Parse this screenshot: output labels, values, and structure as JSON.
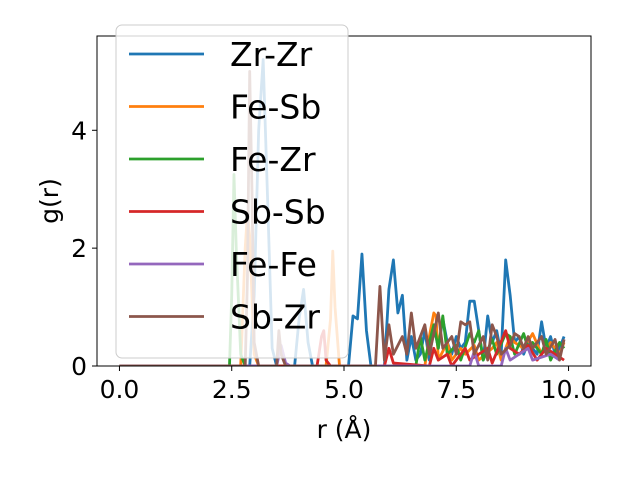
{
  "chart_data": {
    "type": "line",
    "title": "",
    "xlabel": "r (Å)",
    "ylabel": "g(r)",
    "xlim": [
      -0.5,
      10.5
    ],
    "ylim": [
      0,
      5.6
    ],
    "xticks": [
      0.0,
      2.5,
      5.0,
      7.5,
      10.0
    ],
    "xtick_labels": [
      "0.0",
      "2.5",
      "5.0",
      "7.5",
      "10.0"
    ],
    "yticks": [
      0,
      2,
      4
    ],
    "ytick_labels": [
      "0",
      "2",
      "4"
    ],
    "grid": false,
    "legend_placement": "upper-left",
    "series": [
      {
        "name": "Zr-Zr",
        "color": "#1f77b4",
        "points": [
          [
            0.0,
            0
          ],
          [
            2.9,
            0
          ],
          [
            3.0,
            1.2
          ],
          [
            3.1,
            4.0
          ],
          [
            3.2,
            5.2
          ],
          [
            3.3,
            2.8
          ],
          [
            3.4,
            0.3
          ],
          [
            3.5,
            0
          ],
          [
            3.9,
            0
          ],
          [
            4.0,
            0.8
          ],
          [
            4.1,
            1.3
          ],
          [
            4.2,
            0.4
          ],
          [
            4.3,
            0
          ],
          [
            5.1,
            0
          ],
          [
            5.2,
            0.85
          ],
          [
            5.3,
            0.8
          ],
          [
            5.4,
            1.9
          ],
          [
            5.5,
            0.6
          ],
          [
            5.6,
            0
          ],
          [
            5.9,
            0
          ],
          [
            6.0,
            1.3
          ],
          [
            6.1,
            1.8
          ],
          [
            6.2,
            0.9
          ],
          [
            6.3,
            1.2
          ],
          [
            6.4,
            0.1
          ],
          [
            6.5,
            0.5
          ],
          [
            6.6,
            0.1
          ],
          [
            6.7,
            0.2
          ],
          [
            6.8,
            0.6
          ],
          [
            6.9,
            0.1
          ],
          [
            7.0,
            0.7
          ],
          [
            7.1,
            0.3
          ],
          [
            7.2,
            0.8
          ],
          [
            7.3,
            0.4
          ],
          [
            7.4,
            0.2
          ],
          [
            7.5,
            0.5
          ],
          [
            7.6,
            0.3
          ],
          [
            7.7,
            0.4
          ],
          [
            7.8,
            1.1
          ],
          [
            7.9,
            1.1
          ],
          [
            8.0,
            0.6
          ],
          [
            8.1,
            0.1
          ],
          [
            8.2,
            0.85
          ],
          [
            8.3,
            0.4
          ],
          [
            8.4,
            0.6
          ],
          [
            8.5,
            0.2
          ],
          [
            8.6,
            1.8
          ],
          [
            8.7,
            1.2
          ],
          [
            8.8,
            0.4
          ],
          [
            8.9,
            0.5
          ],
          [
            9.0,
            0.2
          ],
          [
            9.1,
            0.4
          ],
          [
            9.2,
            0.3
          ],
          [
            9.3,
            0.2
          ],
          [
            9.4,
            0.75
          ],
          [
            9.5,
            0.3
          ],
          [
            9.6,
            0.5
          ],
          [
            9.7,
            0.2
          ],
          [
            9.8,
            0.3
          ],
          [
            9.9,
            0.5
          ]
        ]
      },
      {
        "name": "Fe-Sb",
        "color": "#ff7f0e",
        "points": [
          [
            0.0,
            0
          ],
          [
            2.7,
            0
          ],
          [
            2.8,
            2.0
          ],
          [
            2.85,
            2.6
          ],
          [
            2.9,
            2.2
          ],
          [
            3.0,
            0.2
          ],
          [
            3.1,
            0
          ],
          [
            4.6,
            0
          ],
          [
            4.7,
            0.8
          ],
          [
            4.75,
            1.95
          ],
          [
            4.8,
            1.0
          ],
          [
            4.9,
            0
          ],
          [
            6.8,
            0
          ],
          [
            6.9,
            0.5
          ],
          [
            7.0,
            0.9
          ],
          [
            7.05,
            0.85
          ],
          [
            7.1,
            0.1
          ],
          [
            7.3,
            0.4
          ],
          [
            7.4,
            0.1
          ],
          [
            7.6,
            0.3
          ],
          [
            7.7,
            0.2
          ],
          [
            7.9,
            0.35
          ],
          [
            8.0,
            0.1
          ],
          [
            8.3,
            0.3
          ],
          [
            8.4,
            0.4
          ],
          [
            8.5,
            0.1
          ],
          [
            8.7,
            0.5
          ],
          [
            8.8,
            0.4
          ],
          [
            9.0,
            0.3
          ],
          [
            9.2,
            0.55
          ],
          [
            9.4,
            0.2
          ],
          [
            9.6,
            0.4
          ],
          [
            9.8,
            0.2
          ],
          [
            9.9,
            0.4
          ]
        ]
      },
      {
        "name": "Fe-Zr",
        "color": "#2ca02c",
        "points": [
          [
            0.0,
            0
          ],
          [
            2.45,
            0
          ],
          [
            2.5,
            1.2
          ],
          [
            2.55,
            3.25
          ],
          [
            2.6,
            2.0
          ],
          [
            2.7,
            0.2
          ],
          [
            2.8,
            0
          ],
          [
            6.6,
            0
          ],
          [
            6.7,
            0.5
          ],
          [
            6.8,
            0.1
          ],
          [
            7.0,
            0.7
          ],
          [
            7.1,
            0.3
          ],
          [
            7.2,
            0.85
          ],
          [
            7.3,
            0.2
          ],
          [
            7.5,
            0.35
          ],
          [
            7.6,
            0.1
          ],
          [
            7.8,
            0.55
          ],
          [
            7.9,
            0.4
          ],
          [
            8.0,
            0.6
          ],
          [
            8.1,
            0.1
          ],
          [
            8.3,
            0.45
          ],
          [
            8.4,
            0.2
          ],
          [
            8.6,
            0.55
          ],
          [
            8.7,
            0.5
          ],
          [
            8.8,
            0.2
          ],
          [
            9.0,
            0.55
          ],
          [
            9.1,
            0.3
          ],
          [
            9.2,
            0.4
          ],
          [
            9.4,
            0.2
          ],
          [
            9.5,
            0.45
          ],
          [
            9.6,
            0.1
          ],
          [
            9.8,
            0.4
          ],
          [
            9.9,
            0.3
          ]
        ]
      },
      {
        "name": "Sb-Sb",
        "color": "#d62728",
        "points": [
          [
            0.0,
            0
          ],
          [
            4.4,
            0
          ],
          [
            4.5,
            0.5
          ],
          [
            4.55,
            0.6
          ],
          [
            4.6,
            0.1
          ],
          [
            4.7,
            0
          ],
          [
            5.9,
            0
          ],
          [
            6.0,
            0.3
          ],
          [
            6.1,
            0.05
          ],
          [
            6.9,
            0
          ],
          [
            7.0,
            0.3
          ],
          [
            7.1,
            0.1
          ],
          [
            7.3,
            0.2
          ],
          [
            7.4,
            0
          ],
          [
            7.7,
            0.3
          ],
          [
            7.8,
            0.1
          ],
          [
            8.2,
            0.3
          ],
          [
            8.3,
            0.05
          ],
          [
            8.6,
            0.6
          ],
          [
            8.7,
            0.3
          ],
          [
            8.9,
            0.2
          ],
          [
            9.1,
            0.35
          ],
          [
            9.3,
            0.1
          ],
          [
            9.5,
            0.3
          ],
          [
            9.7,
            0.2
          ],
          [
            9.9,
            0.1
          ]
        ]
      },
      {
        "name": "Fe-Fe",
        "color": "#9467bd",
        "points": [
          [
            0.0,
            0
          ],
          [
            3.5,
            0
          ],
          [
            3.6,
            0.35
          ],
          [
            3.7,
            0.05
          ],
          [
            3.8,
            0
          ],
          [
            7.8,
            0
          ],
          [
            7.9,
            0.25
          ],
          [
            8.0,
            0
          ],
          [
            8.5,
            0
          ],
          [
            8.6,
            0.3
          ],
          [
            8.7,
            0.1
          ],
          [
            9.1,
            0.3
          ],
          [
            9.2,
            0.1
          ],
          [
            9.6,
            0.2
          ],
          [
            9.8,
            0.1
          ]
        ]
      },
      {
        "name": "Sb-Zr",
        "color": "#8c564b",
        "points": [
          [
            0.0,
            0
          ],
          [
            2.8,
            0
          ],
          [
            2.85,
            1.5
          ],
          [
            2.9,
            5.0
          ],
          [
            2.95,
            3.0
          ],
          [
            3.0,
            0.4
          ],
          [
            3.1,
            0
          ],
          [
            3.5,
            0
          ],
          [
            3.55,
            0.6
          ],
          [
            3.6,
            0.2
          ],
          [
            3.7,
            0
          ],
          [
            5.7,
            0
          ],
          [
            5.8,
            1.35
          ],
          [
            5.85,
            0.7
          ],
          [
            5.9,
            0.1
          ],
          [
            6.0,
            0.7
          ],
          [
            6.1,
            0.2
          ],
          [
            6.3,
            0.5
          ],
          [
            6.4,
            0.2
          ],
          [
            6.5,
            0.9
          ],
          [
            6.6,
            0.3
          ],
          [
            6.8,
            0.7
          ],
          [
            6.9,
            0.2
          ],
          [
            7.1,
            0.9
          ],
          [
            7.2,
            0.3
          ],
          [
            7.4,
            0.5
          ],
          [
            7.5,
            0.2
          ],
          [
            7.6,
            0.75
          ],
          [
            7.7,
            0.7
          ],
          [
            7.8,
            0.75
          ],
          [
            7.9,
            0.2
          ],
          [
            8.1,
            0.5
          ],
          [
            8.2,
            0.1
          ],
          [
            8.3,
            0.7
          ],
          [
            8.4,
            0.5
          ],
          [
            8.5,
            0.2
          ],
          [
            8.7,
            0.35
          ],
          [
            8.8,
            0.55
          ],
          [
            8.9,
            0.5
          ],
          [
            9.0,
            0.3
          ],
          [
            9.1,
            0.5
          ],
          [
            9.2,
            0.3
          ],
          [
            9.4,
            0.5
          ],
          [
            9.5,
            0.2
          ],
          [
            9.7,
            0.45
          ],
          [
            9.8,
            0.1
          ],
          [
            9.9,
            0.45
          ]
        ]
      }
    ]
  }
}
